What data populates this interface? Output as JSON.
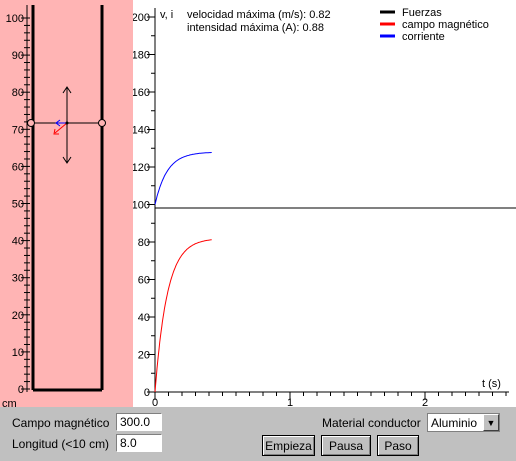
{
  "ruler": {
    "labels": [
      "100",
      "90",
      "80",
      "70",
      "60",
      "50",
      "40",
      "30",
      "20",
      "10",
      "0"
    ],
    "unit": "cm"
  },
  "graph": {
    "axis_label": "v, i",
    "time_label": "t (s)",
    "y_ticks": [
      "200",
      "180",
      "160",
      "140",
      "120",
      "100",
      "80",
      "60",
      "40",
      "20",
      "0"
    ],
    "x_ticks": [
      "0",
      "1",
      "2"
    ],
    "readout_velocity": "velocidad máxima (m/s): 0.82",
    "readout_current": "intensidad máxima (A): 0.88",
    "legend": [
      {
        "label": "Fuerzas",
        "color": "#000000"
      },
      {
        "label": "campo magnético",
        "color": "#ff0000"
      },
      {
        "label": "corriente",
        "color": "#0000ff"
      }
    ]
  },
  "chart_data": {
    "type": "line",
    "xlabel": "t (s)",
    "ylabel": "v, i",
    "xlim": [
      0,
      2.6
    ],
    "ylim": [
      0,
      200
    ],
    "series": [
      {
        "name": "campo magnético",
        "color": "#ff0000",
        "baseline": 0,
        "max_value": 82,
        "time_constant": 0.09,
        "t_end": 0.42
      },
      {
        "name": "corriente",
        "color": "#0000ff",
        "baseline": 100,
        "max_value": 28,
        "time_constant": 0.09,
        "t_end": 0.42
      }
    ]
  },
  "controls": {
    "field_label": "Campo magnético",
    "field_value": "300.0",
    "length_label": "Longitud (<10 cm)",
    "length_value": "8.0",
    "material_label": "Material conductor",
    "material_value": "Aluminio",
    "start_label": "Empieza",
    "pause_label": "Pausa",
    "step_label": "Paso"
  }
}
